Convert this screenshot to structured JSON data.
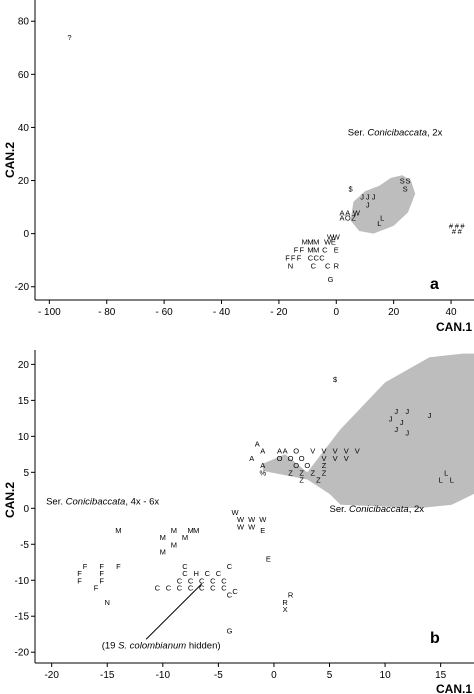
{
  "chart_data": [
    {
      "type": "scatter",
      "panel_label": "a",
      "xlabel": "CAN.1",
      "ylabel": "CAN.2",
      "xlim": [
        -105,
        48
      ],
      "ylim": [
        -25,
        88
      ],
      "xticks": [
        -100,
        -80,
        -60,
        -40,
        -20,
        0,
        20,
        40
      ],
      "xtick_labels": [
        "- 100",
        "- 80",
        "- 60",
        "- 40",
        "- 20",
        "0",
        "20",
        "40"
      ],
      "yticks": [
        -20,
        0,
        20,
        40,
        60,
        80
      ],
      "ytick_labels": [
        "-20",
        "0",
        "20",
        "40",
        "60",
        "80"
      ],
      "annotation": {
        "prefix": "Ser. ",
        "italic": "Conicibaccata",
        "suffix": ", 2x",
        "x": 4,
        "y": 37
      },
      "hull": [
        [
          15,
          18
        ],
        [
          19,
          21
        ],
        [
          23,
          22
        ],
        [
          26,
          20
        ],
        [
          27.5,
          15
        ],
        [
          25,
          8
        ],
        [
          20,
          3
        ],
        [
          13,
          0
        ],
        [
          8,
          1
        ],
        [
          5,
          5
        ],
        [
          6,
          12
        ],
        [
          10,
          16
        ]
      ],
      "points": [
        {
          "label": "?",
          "x": -93,
          "y": 74
        },
        {
          "label": "$",
          "x": 5,
          "y": 17
        },
        {
          "label": "S",
          "x": 23,
          "y": 20
        },
        {
          "label": "S",
          "x": 25,
          "y": 20
        },
        {
          "label": "S",
          "x": 24,
          "y": 17
        },
        {
          "label": "J",
          "x": 9,
          "y": 14
        },
        {
          "label": "J",
          "x": 11,
          "y": 14
        },
        {
          "label": "J",
          "x": 13,
          "y": 14
        },
        {
          "label": "J",
          "x": 11,
          "y": 11
        },
        {
          "label": "A",
          "x": 2,
          "y": 8
        },
        {
          "label": "A",
          "x": 4,
          "y": 8
        },
        {
          "label": "W",
          "x": 7,
          "y": 8
        },
        {
          "label": "A",
          "x": 2,
          "y": 6
        },
        {
          "label": "O",
          "x": 4,
          "y": 6
        },
        {
          "label": "Z",
          "x": 6,
          "y": 6
        },
        {
          "label": "L",
          "x": 16,
          "y": 6
        },
        {
          "label": "L",
          "x": 15,
          "y": 4
        },
        {
          "label": "#",
          "x": 40,
          "y": 3
        },
        {
          "label": "#",
          "x": 42,
          "y": 3
        },
        {
          "label": "#",
          "x": 44,
          "y": 3
        },
        {
          "label": "#",
          "x": 41,
          "y": 1
        },
        {
          "label": "#",
          "x": 43,
          "y": 1
        },
        {
          "label": "W",
          "x": -2,
          "y": -1
        },
        {
          "label": "W",
          "x": 0,
          "y": -1
        },
        {
          "label": "M",
          "x": -11,
          "y": -3
        },
        {
          "label": "M",
          "x": -9,
          "y": -3
        },
        {
          "label": "M",
          "x": -7,
          "y": -3
        },
        {
          "label": "W",
          "x": -3,
          "y": -3
        },
        {
          "label": "E",
          "x": -1,
          "y": -3
        },
        {
          "label": "F",
          "x": -14,
          "y": -6
        },
        {
          "label": "F",
          "x": -12,
          "y": -6
        },
        {
          "label": "M",
          "x": -9,
          "y": -6
        },
        {
          "label": "M",
          "x": -7,
          "y": -6
        },
        {
          "label": "C",
          "x": -4,
          "y": -6
        },
        {
          "label": "E",
          "x": 0,
          "y": -6
        },
        {
          "label": "F",
          "x": -17,
          "y": -9
        },
        {
          "label": "F",
          "x": -15,
          "y": -9
        },
        {
          "label": "F",
          "x": -13,
          "y": -9
        },
        {
          "label": "C",
          "x": -9,
          "y": -9
        },
        {
          "label": "C",
          "x": -7,
          "y": -9
        },
        {
          "label": "C",
          "x": -5,
          "y": -9
        },
        {
          "label": "N",
          "x": -16,
          "y": -12
        },
        {
          "label": "C",
          "x": -8,
          "y": -12
        },
        {
          "label": "C",
          "x": -3,
          "y": -12
        },
        {
          "label": "R",
          "x": 0,
          "y": -12
        },
        {
          "label": "G",
          "x": -2,
          "y": -17
        }
      ]
    },
    {
      "type": "scatter",
      "panel_label": "b",
      "xlabel": "CAN.1",
      "ylabel": "CAN.2",
      "xlim": [
        -21.5,
        18
      ],
      "ylim": [
        -21.5,
        22
      ],
      "xticks": [
        -20,
        -15,
        -10,
        -5,
        0,
        5,
        10,
        15
      ],
      "xtick_labels": [
        "-20",
        "-15",
        "-10",
        "-5",
        "0",
        "5",
        "10",
        "15"
      ],
      "yticks": [
        -20,
        -15,
        -10,
        -5,
        0,
        5,
        10,
        15,
        20
      ],
      "ytick_labels": [
        "-20",
        "-15",
        "-10",
        "-5",
        "0",
        "5",
        "10",
        "15",
        "20"
      ],
      "annotation_right": {
        "prefix": "Ser. ",
        "italic": "Conicibaccata",
        "suffix": ", 2x",
        "x": 5,
        "y": -0.5
      },
      "annotation_left": {
        "prefix": "Ser. ",
        "italic": "Conicibaccata",
        "suffix": ", 4x - 6x",
        "x": -20.5,
        "y": 0.5
      },
      "hidden_note": {
        "prefix": "(19 ",
        "italic": "S. colombianum",
        "suffix": " hidden)",
        "x": -15.5,
        "y": -19.5
      },
      "pointer": {
        "from": [
          -11.5,
          -18.2
        ],
        "to": [
          -6.5,
          -10.5
        ]
      },
      "hull": [
        [
          3,
          5
        ],
        [
          6,
          11
        ],
        [
          10,
          17.5
        ],
        [
          14,
          21
        ],
        [
          17,
          21.5
        ],
        [
          18,
          21.5
        ],
        [
          18,
          2
        ],
        [
          16,
          0.5
        ],
        [
          13,
          0
        ],
        [
          9,
          0.3
        ],
        [
          6,
          0.5
        ],
        [
          5,
          2
        ],
        [
          3,
          4
        ],
        [
          -1,
          5.2
        ],
        [
          -1,
          6.2
        ],
        [
          1,
          7.5
        ]
      ],
      "points": [
        {
          "label": "$",
          "x": 5.5,
          "y": 18
        },
        {
          "label": "J",
          "x": 11,
          "y": 13.5
        },
        {
          "label": "J",
          "x": 12,
          "y": 13.5
        },
        {
          "label": "J",
          "x": 14,
          "y": 13
        },
        {
          "label": "J",
          "x": 10.5,
          "y": 12.5
        },
        {
          "label": "J",
          "x": 11.5,
          "y": 12
        },
        {
          "label": "J",
          "x": 11,
          "y": 11
        },
        {
          "label": "J",
          "x": 12,
          "y": 10.5
        },
        {
          "label": "A",
          "x": -1.5,
          "y": 9
        },
        {
          "label": "A",
          "x": -1,
          "y": 8
        },
        {
          "label": "A",
          "x": 0.5,
          "y": 8
        },
        {
          "label": "A",
          "x": 1,
          "y": 8
        },
        {
          "label": "O",
          "x": 2,
          "y": 8
        },
        {
          "label": "V",
          "x": 3.5,
          "y": 8
        },
        {
          "label": "V",
          "x": 4.5,
          "y": 8
        },
        {
          "label": "V",
          "x": 5.5,
          "y": 8
        },
        {
          "label": "V",
          "x": 6.5,
          "y": 8
        },
        {
          "label": "V",
          "x": 7.5,
          "y": 8
        },
        {
          "label": "A",
          "x": -2,
          "y": 7
        },
        {
          "label": "O",
          "x": 0.5,
          "y": 7
        },
        {
          "label": "O",
          "x": 1.5,
          "y": 7
        },
        {
          "label": "O",
          "x": 2.5,
          "y": 7
        },
        {
          "label": "V",
          "x": 4.5,
          "y": 7
        },
        {
          "label": "V",
          "x": 5.5,
          "y": 7
        },
        {
          "label": "V",
          "x": 6.5,
          "y": 7
        },
        {
          "label": "A",
          "x": -1,
          "y": 6
        },
        {
          "label": "O",
          "x": 2,
          "y": 6
        },
        {
          "label": "O",
          "x": 3,
          "y": 6
        },
        {
          "label": "Z",
          "x": 4.5,
          "y": 6
        },
        {
          "label": "%",
          "x": -1,
          "y": 5
        },
        {
          "label": "Z",
          "x": 1.5,
          "y": 5
        },
        {
          "label": "Z",
          "x": 2.5,
          "y": 5
        },
        {
          "label": "Z",
          "x": 3.5,
          "y": 5
        },
        {
          "label": "Z",
          "x": 4.5,
          "y": 5
        },
        {
          "label": "Z",
          "x": 2.5,
          "y": 4
        },
        {
          "label": "Z",
          "x": 4,
          "y": 4
        },
        {
          "label": "L",
          "x": 15.5,
          "y": 5
        },
        {
          "label": "L",
          "x": 15,
          "y": 4
        },
        {
          "label": "L",
          "x": 16,
          "y": 4
        },
        {
          "label": "W",
          "x": -3.5,
          "y": -0.5
        },
        {
          "label": "W",
          "x": -3,
          "y": -1.5
        },
        {
          "label": "W",
          "x": -2,
          "y": -1.5
        },
        {
          "label": "W",
          "x": -1,
          "y": -1.5
        },
        {
          "label": "W",
          "x": -3,
          "y": -2.5
        },
        {
          "label": "W",
          "x": -2,
          "y": -2.5
        },
        {
          "label": "E",
          "x": -1,
          "y": -3
        },
        {
          "label": "M",
          "x": -14,
          "y": -3
        },
        {
          "label": "M",
          "x": -9,
          "y": -3
        },
        {
          "label": "M",
          "x": -7.5,
          "y": -3
        },
        {
          "label": "M",
          "x": -7,
          "y": -3
        },
        {
          "label": "M",
          "x": -10,
          "y": -4
        },
        {
          "label": "M",
          "x": -8,
          "y": -4
        },
        {
          "label": "M",
          "x": -9,
          "y": -5
        },
        {
          "label": "M",
          "x": -10,
          "y": -6
        },
        {
          "label": "E",
          "x": -0.5,
          "y": -7
        },
        {
          "label": "C",
          "x": -8,
          "y": -8
        },
        {
          "label": "C",
          "x": -4,
          "y": -8
        },
        {
          "label": "F",
          "x": -17,
          "y": -8
        },
        {
          "label": "F",
          "x": -15.5,
          "y": -8
        },
        {
          "label": "F",
          "x": -14,
          "y": -8
        },
        {
          "label": "F",
          "x": -17.5,
          "y": -9
        },
        {
          "label": "F",
          "x": -15.5,
          "y": -9
        },
        {
          "label": "F",
          "x": -17.5,
          "y": -10
        },
        {
          "label": "F",
          "x": -15.5,
          "y": -10
        },
        {
          "label": "F",
          "x": -16,
          "y": -11
        },
        {
          "label": "C",
          "x": -8,
          "y": -9
        },
        {
          "label": "H",
          "x": -7,
          "y": -9
        },
        {
          "label": "C",
          "x": -6,
          "y": -9
        },
        {
          "label": "C",
          "x": -5,
          "y": -9
        },
        {
          "label": "C",
          "x": -8.5,
          "y": -10
        },
        {
          "label": "C",
          "x": -7.5,
          "y": -10
        },
        {
          "label": "C",
          "x": -6.5,
          "y": -10
        },
        {
          "label": "C",
          "x": -5.5,
          "y": -10
        },
        {
          "label": "C",
          "x": -4.5,
          "y": -10
        },
        {
          "label": "C",
          "x": -10.5,
          "y": -11
        },
        {
          "label": "C",
          "x": -9.5,
          "y": -11
        },
        {
          "label": "C",
          "x": -8.5,
          "y": -11
        },
        {
          "label": "C",
          "x": -7.5,
          "y": -11
        },
        {
          "label": "C",
          "x": -6.5,
          "y": -11
        },
        {
          "label": "C",
          "x": -5.5,
          "y": -11
        },
        {
          "label": "C",
          "x": -4.5,
          "y": -11
        },
        {
          "label": "C",
          "x": -3.5,
          "y": -11.5
        },
        {
          "label": "C",
          "x": -4,
          "y": -12
        },
        {
          "label": "N",
          "x": -15,
          "y": -13
        },
        {
          "label": "R",
          "x": 1.5,
          "y": -12
        },
        {
          "label": "R",
          "x": 1,
          "y": -13
        },
        {
          "label": "X",
          "x": 1,
          "y": -14
        },
        {
          "label": "G",
          "x": -4,
          "y": -17
        }
      ]
    }
  ]
}
